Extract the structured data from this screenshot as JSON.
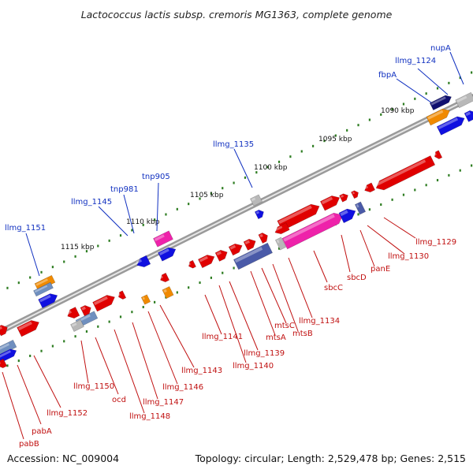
{
  "title": "Lactococcus lactis subsp. cremoris MG1363, complete genome",
  "footer": {
    "accession": "Accession: NC_009004",
    "topology": "Topology: circular; Length: 2,529,478 bp; Genes: 2,515"
  },
  "kbp_ticks": [
    "1090 kbp",
    "1095 kbp",
    "1100 kbp",
    "1105 kbp",
    "1110 kbp",
    "1115 kbp"
  ],
  "upper_gene_labels": [
    "nupA",
    "llmg_1124",
    "fbpA",
    "llmg_1135",
    "tnp905",
    "tnp981",
    "llmg_1145",
    "llmg_1151"
  ],
  "lower_gene_labels": [
    "llmg_1129",
    "llmg_1130",
    "panE",
    "sbcD",
    "sbcC",
    "llmg_1134",
    "mtsB",
    "mtsC",
    "mtsA",
    "llmg_1139",
    "llmg_1140",
    "llmg_1141",
    "llmg_1143",
    "llmg_1146",
    "llmg_1147",
    "llmg_1148",
    "ocd",
    "llmg_1150",
    "llmg_1152",
    "pabA",
    "pabB"
  ],
  "colors": {
    "forward_strand_gene": "#e00000",
    "reverse_strand_gene": "#1010e0",
    "orange_gene": "#f08a00",
    "pink_gene": "#ee22aa",
    "slate_gene": "#4a5aa8",
    "navy_gene": "#101070",
    "grey_gene": "#b8b8b8",
    "steelblue_gene": "#6f8fbf",
    "backbone": "#808080",
    "tick_marks": "#2e7d22",
    "upper_label": "#1030c0",
    "lower_label": "#c01010"
  }
}
